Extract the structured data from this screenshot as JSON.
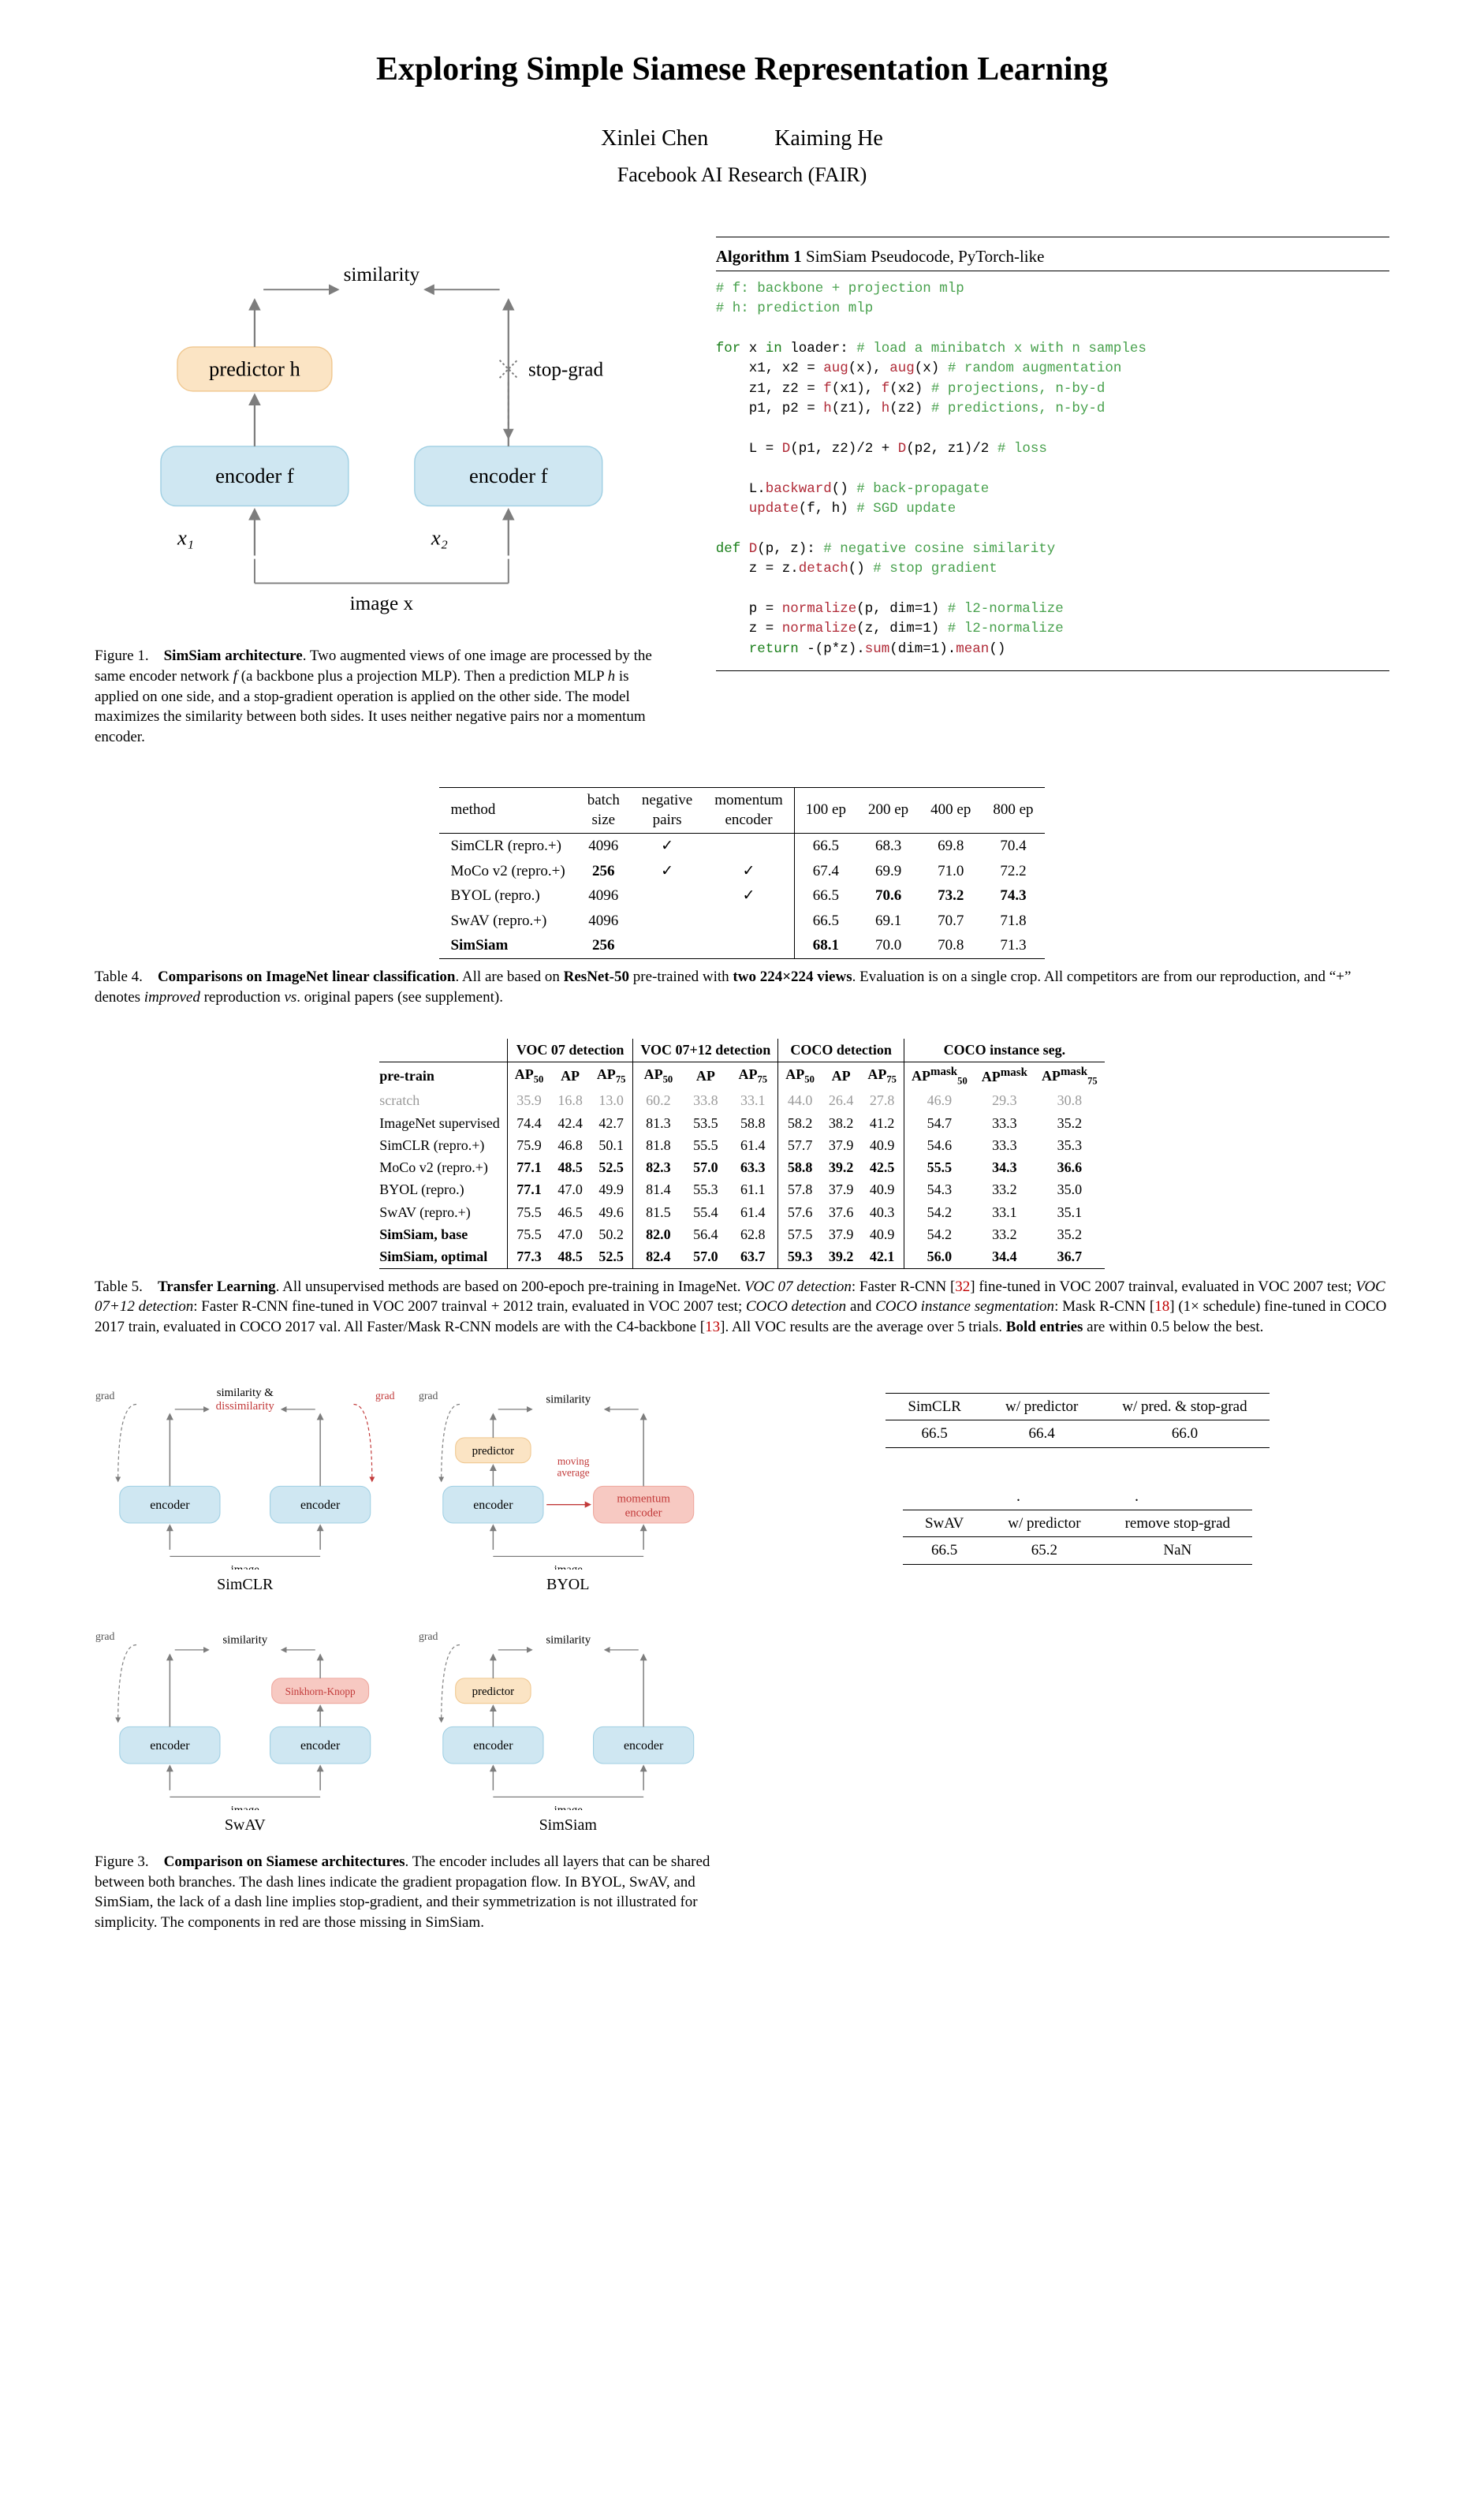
{
  "title": "Exploring Simple Siamese Representation Learning",
  "authors": "Xinlei Chen   Kaiming He",
  "affiliation": "Facebook AI Research (FAIR)",
  "colors": {
    "encoder_fill": "#cfe7f2",
    "encoder_stroke": "#9fcfe3",
    "predictor_fill": "#fbe4c4",
    "predictor_stroke": "#f0c78f",
    "momentum_fill": "#f7c9c2",
    "momentum_stroke": "#eea79d",
    "sk_fill": "#f7c9c2",
    "arrow": "#7d7d7d",
    "arrow_dashed": "#7d7d7d",
    "red_text": "#c23a3a",
    "text": "#000000",
    "gray_text": "#9a9a9a",
    "comment": "#48a14d",
    "keyword": "#1a7f1a",
    "func": "#b02a37"
  },
  "fig1": {
    "labels": {
      "similarity": "similarity",
      "predictor": "predictor h",
      "stopgrad": "stop-grad",
      "encoder": "encoder f",
      "x1": "x₁",
      "x2": "x₂",
      "image": "image x"
    },
    "caption_html": "Figure 1. <b>SimSiam architecture</b>. Two augmented views of one image are processed by the same encoder network <i>f</i> (a backbone plus a projection MLP). Then a prediction MLP <i>h</i> is applied on one side, and a stop-gradient operation is applied on the other side. The model maximizes the similarity between both sides. It uses neither negative pairs nor a momentum encoder."
  },
  "algo": {
    "title_html": "<b>Algorithm 1</b> SimSiam Pseudocode, PyTorch-like",
    "lines": [
      {
        "t": "# f: backbone + projection mlp",
        "cls": "c-comment"
      },
      {
        "t": "# h: prediction mlp",
        "cls": "c-comment"
      },
      {
        "t": ""
      },
      {
        "frags": [
          {
            "t": "for ",
            "cls": "c-kw"
          },
          {
            "t": "x "
          },
          {
            "t": "in ",
            "cls": "c-kw"
          },
          {
            "t": "loader: "
          },
          {
            "t": "# load a minibatch x with n samples",
            "cls": "c-comment"
          }
        ]
      },
      {
        "frags": [
          {
            "t": "    x1, x2 = "
          },
          {
            "t": "aug",
            "cls": "c-fn"
          },
          {
            "t": "(x), "
          },
          {
            "t": "aug",
            "cls": "c-fn"
          },
          {
            "t": "(x) "
          },
          {
            "t": "# random augmentation",
            "cls": "c-comment"
          }
        ]
      },
      {
        "frags": [
          {
            "t": "    z1, z2 = "
          },
          {
            "t": "f",
            "cls": "c-fn"
          },
          {
            "t": "(x1), "
          },
          {
            "t": "f",
            "cls": "c-fn"
          },
          {
            "t": "(x2) "
          },
          {
            "t": "# projections, n-by-d",
            "cls": "c-comment"
          }
        ]
      },
      {
        "frags": [
          {
            "t": "    p1, p2 = "
          },
          {
            "t": "h",
            "cls": "c-fn"
          },
          {
            "t": "(z1), "
          },
          {
            "t": "h",
            "cls": "c-fn"
          },
          {
            "t": "(z2) "
          },
          {
            "t": "# predictions, n-by-d",
            "cls": "c-comment"
          }
        ]
      },
      {
        "t": ""
      },
      {
        "frags": [
          {
            "t": "    L = "
          },
          {
            "t": "D",
            "cls": "c-fn"
          },
          {
            "t": "(p1, z2)/2 + "
          },
          {
            "t": "D",
            "cls": "c-fn"
          },
          {
            "t": "(p2, z1)/2 "
          },
          {
            "t": "# loss",
            "cls": "c-comment"
          }
        ]
      },
      {
        "t": ""
      },
      {
        "frags": [
          {
            "t": "    L."
          },
          {
            "t": "backward",
            "cls": "c-fn"
          },
          {
            "t": "() "
          },
          {
            "t": "# back-propagate",
            "cls": "c-comment"
          }
        ]
      },
      {
        "frags": [
          {
            "t": "    "
          },
          {
            "t": "update",
            "cls": "c-fn"
          },
          {
            "t": "(f, h) "
          },
          {
            "t": "# SGD update",
            "cls": "c-comment"
          }
        ]
      },
      {
        "t": ""
      },
      {
        "frags": [
          {
            "t": "def ",
            "cls": "c-kw"
          },
          {
            "t": "D",
            "cls": "c-fn"
          },
          {
            "t": "(p, z): "
          },
          {
            "t": "# negative cosine similarity",
            "cls": "c-comment"
          }
        ]
      },
      {
        "frags": [
          {
            "t": "    z = z."
          },
          {
            "t": "detach",
            "cls": "c-fn"
          },
          {
            "t": "() "
          },
          {
            "t": "# stop gradient",
            "cls": "c-comment"
          }
        ]
      },
      {
        "t": ""
      },
      {
        "frags": [
          {
            "t": "    p = "
          },
          {
            "t": "normalize",
            "cls": "c-fn"
          },
          {
            "t": "(p, dim=1) "
          },
          {
            "t": "# l2-normalize",
            "cls": "c-comment"
          }
        ]
      },
      {
        "frags": [
          {
            "t": "    z = "
          },
          {
            "t": "normalize",
            "cls": "c-fn"
          },
          {
            "t": "(z, dim=1) "
          },
          {
            "t": "# l2-normalize",
            "cls": "c-comment"
          }
        ]
      },
      {
        "frags": [
          {
            "t": "    "
          },
          {
            "t": "return ",
            "cls": "c-kw"
          },
          {
            "t": "-(p*z)."
          },
          {
            "t": "sum",
            "cls": "c-fn"
          },
          {
            "t": "(dim=1)."
          },
          {
            "t": "mean",
            "cls": "c-fn"
          },
          {
            "t": "()"
          }
        ]
      }
    ]
  },
  "table4": {
    "headers": [
      "method",
      "batch\nsize",
      "negative\npairs",
      "momentum\nencoder",
      "100 ep",
      "200 ep",
      "400 ep",
      "800 ep"
    ],
    "rows": [
      {
        "method": "SimCLR (repro.+)",
        "bs": "4096",
        "neg": "✓",
        "mom": "",
        "e100": "66.5",
        "e200": "68.3",
        "e400": "69.8",
        "e800": "70.4"
      },
      {
        "method": "MoCo v2 (repro.+)",
        "bs": "256",
        "bs_bold": true,
        "neg": "✓",
        "mom": "✓",
        "e100": "67.4",
        "e200": "69.9",
        "e400": "71.0",
        "e800": "72.2"
      },
      {
        "method": "BYOL (repro.)",
        "bs": "4096",
        "neg": "",
        "mom": "✓",
        "e100": "66.5",
        "e200": "70.6",
        "e200_bold": true,
        "e400": "73.2",
        "e400_bold": true,
        "e800": "74.3",
        "e800_bold": true
      },
      {
        "method": "SwAV (repro.+)",
        "bs": "4096",
        "neg": "",
        "mom": "",
        "e100": "66.5",
        "e200": "69.1",
        "e400": "70.7",
        "e800": "71.8"
      },
      {
        "method": "SimSiam",
        "method_bold": true,
        "bs": "256",
        "bs_bold": true,
        "neg": "",
        "mom": "",
        "e100": "68.1",
        "e100_bold": true,
        "e200": "70.0",
        "e400": "70.8",
        "e800": "71.3"
      }
    ],
    "caption_html": "Table 4. <b>Comparisons on ImageNet linear classification</b>. All are based on <b>ResNet-50</b> pre-trained with <b>two 224×224 views</b>. Evaluation is on a single crop. All competitors are from our reproduction, and “+” denotes <i>improved</i> reproduction <i>vs</i>. original papers (see supplement)."
  },
  "table5": {
    "group_headers": [
      "VOC 07 detection",
      "VOC 07+12 detection",
      "COCO detection",
      "COCO instance seg."
    ],
    "sub_headers": {
      "pretrain": "pre-train",
      "ap50": "AP",
      "ap": "AP",
      "ap75": "AP",
      "ap50s": "50",
      "ap75s": "75",
      "mask": "mask"
    },
    "rows": [
      {
        "name": "scratch",
        "gray": true,
        "v": [
          "35.9",
          "16.8",
          "13.0",
          "60.2",
          "33.8",
          "33.1",
          "44.0",
          "26.4",
          "27.8",
          "46.9",
          "29.3",
          "30.8"
        ]
      },
      {
        "name": "ImageNet supervised",
        "v": [
          "74.4",
          "42.4",
          "42.7",
          "81.3",
          "53.5",
          "58.8",
          "58.2",
          "38.2",
          "41.2",
          "54.7",
          "33.3",
          "35.2"
        ]
      },
      {
        "name": "SimCLR (repro.+)",
        "v": [
          "75.9",
          "46.8",
          "50.1",
          "81.8",
          "55.5",
          "61.4",
          "57.7",
          "37.9",
          "40.9",
          "54.6",
          "33.3",
          "35.3"
        ]
      },
      {
        "name": "MoCo v2 (repro.+)",
        "v": [
          "77.1",
          "48.5",
          "52.5",
          "82.3",
          "57.0",
          "63.3",
          "58.8",
          "39.2",
          "42.5",
          "55.5",
          "34.3",
          "36.6"
        ],
        "bold": [
          0,
          1,
          2,
          3,
          4,
          5,
          6,
          7,
          8,
          9,
          10,
          11
        ]
      },
      {
        "name": "BYOL (repro.)",
        "v": [
          "77.1",
          "47.0",
          "49.9",
          "81.4",
          "55.3",
          "61.1",
          "57.8",
          "37.9",
          "40.9",
          "54.3",
          "33.2",
          "35.0"
        ],
        "bold": [
          0
        ]
      },
      {
        "name": "SwAV (repro.+)",
        "v": [
          "75.5",
          "46.5",
          "49.6",
          "81.5",
          "55.4",
          "61.4",
          "57.6",
          "37.6",
          "40.3",
          "54.2",
          "33.1",
          "35.1"
        ]
      },
      {
        "name": "SimSiam, base",
        "name_bold": true,
        "v": [
          "75.5",
          "47.0",
          "50.2",
          "82.0",
          "56.4",
          "62.8",
          "57.5",
          "37.9",
          "40.9",
          "54.2",
          "33.2",
          "35.2"
        ],
        "bold": [
          3
        ]
      },
      {
        "name": "SimSiam, optimal",
        "name_bold": true,
        "v": [
          "77.3",
          "48.5",
          "52.5",
          "82.4",
          "57.0",
          "63.7",
          "59.3",
          "39.2",
          "42.1",
          "56.0",
          "34.4",
          "36.7"
        ],
        "bold": [
          0,
          1,
          2,
          3,
          4,
          5,
          6,
          7,
          8,
          9,
          10,
          11
        ]
      }
    ],
    "caption_html": "Table 5. <b>Transfer Learning</b>. All unsupervised methods are based on 200-epoch pre-training in ImageNet. <i>VOC 07 detection</i>: Faster R-CNN [<span class='cite'>32</span>] fine-tuned in VOC 2007 trainval, evaluated in VOC 2007 test; <i>VOC 07+12 detection</i>: Faster R-CNN fine-tuned in VOC 2007 trainval + 2012 train, evaluated in VOC 2007 test; <i>COCO detection</i> and <i>COCO instance segmentation</i>: Mask R-CNN [<span class='cite'>18</span>] (1× schedule) fine-tuned in COCO 2017 train, evaluated in COCO 2017 val. All Faster/Mask R-CNN models are with the C4-backbone [<span class='cite'>13</span>]. All VOC results are the average over 5 trials. <b>Bold entries</b> are within 0.5 below the best."
  },
  "fig3": {
    "labels": {
      "grad": "grad",
      "similarity": "similarity",
      "sim_dissim": "similarity &",
      "dissim": "dissimilarity",
      "encoder": "encoder",
      "predictor": "predictor",
      "momentum": "momentum\nencoder",
      "moving": "moving\naverage",
      "sk": "Sinkhorn-Knopp",
      "image": "image",
      "names": [
        "SimCLR",
        "BYOL",
        "SwAV",
        "SimSiam"
      ]
    },
    "caption_html": "Figure 3. <b>Comparison on Siamese architectures</b>. The encoder includes all layers that can be shared between both branches. The dash lines indicate the gradient propagation flow. In BYOL, SwAV, and SimSiam, the lack of a dash line implies stop-gradient, and their symmetrization is not illustrated for simplicity. The components in red are those missing in SimSiam."
  },
  "mini_tables": {
    "a": {
      "headers": [
        "SimCLR",
        "w/ predictor",
        "w/ pred. & stop-grad"
      ],
      "row": [
        "66.5",
        "66.4",
        "66.0"
      ]
    },
    "b": {
      "headers": [
        "SwAV",
        "w/ predictor",
        "remove stop-grad"
      ],
      "row": [
        "66.5",
        "65.2",
        "NaN"
      ]
    }
  }
}
